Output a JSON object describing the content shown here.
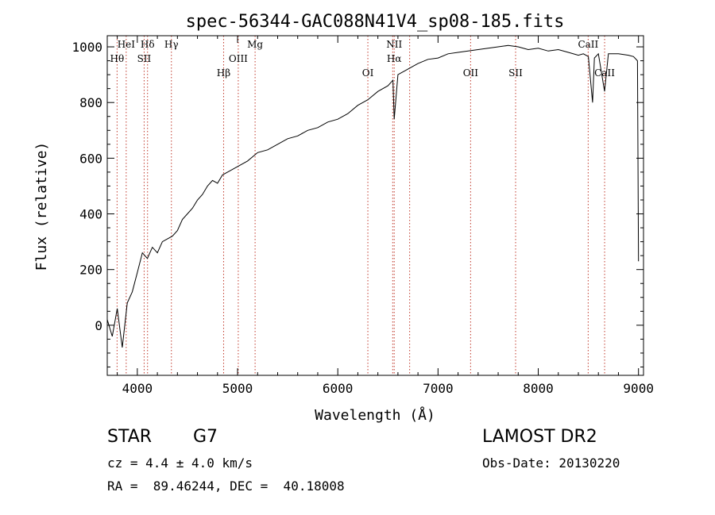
{
  "chart_data": {
    "type": "line",
    "title": "spec-56344-GAC088N41V4_sp08-185.fits",
    "xlabel": "Wavelength (Å)",
    "ylabel": "Flux (relative)",
    "xlim": [
      3700,
      9050
    ],
    "ylim": [
      -180,
      1040
    ],
    "xticks": [
      4000,
      5000,
      6000,
      7000,
      8000,
      9000
    ],
    "yticks": [
      0,
      200,
      400,
      600,
      800,
      1000
    ],
    "grid": false,
    "series": [
      {
        "x": [
          3700,
          3750,
          3800,
          3850,
          3900,
          3950,
          4000,
          4050,
          4100,
          4150,
          4200,
          4250,
          4300,
          4350,
          4400,
          4450,
          4500,
          4550,
          4600,
          4650,
          4700,
          4750,
          4800,
          4850,
          4900,
          4950,
          5000,
          5100,
          5200,
          5300,
          5400,
          5500,
          5600,
          5700,
          5800,
          5900,
          6000,
          6100,
          6200,
          6300,
          6400,
          6500,
          6550,
          6563,
          6600,
          6700,
          6800,
          6900,
          7000,
          7100,
          7200,
          7300,
          7400,
          7500,
          7600,
          7700,
          7800,
          7900,
          8000,
          8100,
          8200,
          8300,
          8400,
          8450,
          8500,
          8542,
          8560,
          8600,
          8662,
          8700,
          8800,
          8900,
          8950,
          8990,
          9000
        ],
        "y": [
          20,
          -40,
          60,
          -80,
          80,
          120,
          190,
          260,
          240,
          280,
          260,
          300,
          310,
          320,
          340,
          380,
          400,
          420,
          450,
          470,
          500,
          520,
          510,
          540,
          550,
          560,
          570,
          590,
          620,
          630,
          650,
          670,
          680,
          700,
          710,
          730,
          740,
          760,
          790,
          810,
          840,
          860,
          880,
          740,
          900,
          920,
          940,
          955,
          960,
          975,
          980,
          985,
          990,
          995,
          1000,
          1005,
          1000,
          990,
          995,
          985,
          990,
          980,
          970,
          975,
          965,
          800,
          960,
          975,
          840,
          975,
          975,
          970,
          965,
          950,
          230
        ]
      }
    ],
    "lines": {
      "values": [
        3798,
        3889,
        4068,
        4102,
        4340,
        4861,
        5007,
        5175,
        6300,
        6548,
        6563,
        6717,
        7325,
        7774,
        8498,
        8662
      ],
      "top_labels": [
        {
          "text": "HeI",
          "x": 3889
        },
        {
          "text": "Hθ",
          "x": 3798
        },
        {
          "text": "Hδ",
          "x": 4102
        },
        {
          "text": "SII",
          "x": 4068
        },
        {
          "text": "Hγ",
          "x": 4340
        },
        {
          "text": "OIII",
          "x": 5007
        },
        {
          "text": "Mg",
          "x": 5175
        },
        {
          "text": "Hβ",
          "x": 4861
        },
        {
          "text": "NII",
          "x": 6563
        },
        {
          "text": "Hα",
          "x": 6563
        },
        {
          "text": "OI",
          "x": 6300
        },
        {
          "text": "OII",
          "x": 7325
        },
        {
          "text": "SII",
          "x": 7774
        },
        {
          "text": "CaII",
          "x": 8498
        },
        {
          "text": "CaII",
          "x": 8662
        }
      ]
    }
  },
  "info": {
    "class": "STAR",
    "subclass": "G7",
    "cz": "cz = 4.4 ± 4.0 km/s",
    "radec": "RA =  89.46244, DEC =  40.18008",
    "survey": "LAMOST DR2",
    "obsdate": "Obs-Date: 20130220"
  }
}
